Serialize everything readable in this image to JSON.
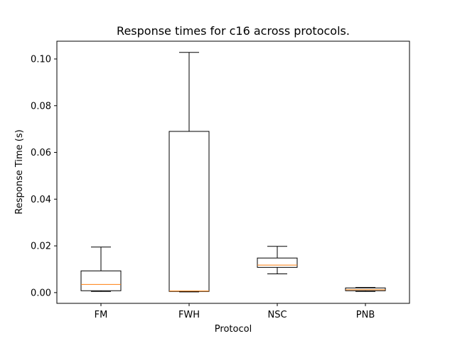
{
  "chart_data": {
    "type": "box",
    "title": "Response times for c16 across protocols.",
    "xlabel": "Protocol",
    "ylabel": "Response Time (s)",
    "categories": [
      "FM",
      "FWH",
      "NSC",
      "PNB"
    ],
    "boxes": [
      {
        "category": "FM",
        "whisker_low": 0.0005,
        "q1": 0.0008,
        "median": 0.0035,
        "q3": 0.0093,
        "whisker_high": 0.0195
      },
      {
        "category": "FWH",
        "whisker_low": 0.0003,
        "q1": 0.0005,
        "median": 0.0007,
        "q3": 0.069,
        "whisker_high": 0.1028
      },
      {
        "category": "NSC",
        "whisker_low": 0.008,
        "q1": 0.0108,
        "median": 0.0118,
        "q3": 0.0148,
        "whisker_high": 0.0198
      },
      {
        "category": "PNB",
        "whisker_low": 0.0005,
        "q1": 0.0008,
        "median": 0.0012,
        "q3": 0.002,
        "whisker_high": 0.0022
      }
    ],
    "ylim": [
      -0.0046,
      0.1076
    ],
    "yticks": [
      0.0,
      0.02,
      0.04,
      0.06,
      0.08,
      0.1
    ],
    "ytick_labels": [
      "0.00",
      "0.02",
      "0.04",
      "0.06",
      "0.08",
      "0.10"
    ],
    "grid": false,
    "colors": {
      "box": "#000000",
      "median": "#ff7f0e"
    }
  }
}
